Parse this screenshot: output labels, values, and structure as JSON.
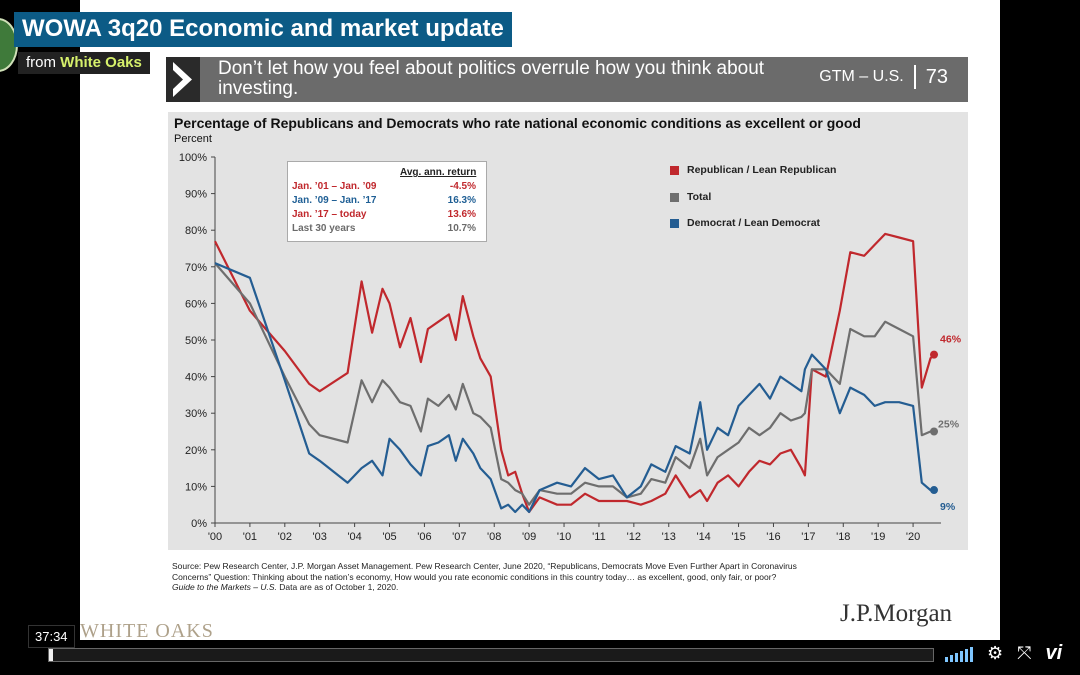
{
  "video": {
    "title": "WOWA 3q20 Economic and market update",
    "from_prefix": "from",
    "from_brand": "White Oaks",
    "timecode": "37:34",
    "progress_fraction": 0.004,
    "vimeo_label": "vi",
    "watermark": "WHITE OAKS"
  },
  "slide": {
    "banner_text": "Don’t let how you feel about politics overrule how you think about investing.",
    "banner_tag": "GTM – U.S.",
    "page_number": "73",
    "chart_title": "Percentage of Republicans and Democrats who rate national economic conditions as excellent or good",
    "y_unit": "Percent",
    "returns_table": {
      "header": "Avg. ann. return",
      "rows": [
        {
          "label": "Jan. ’01 – Jan. ’09",
          "value": "-4.5%",
          "color": "#c0282d"
        },
        {
          "label": "Jan. ’09 – Jan. ’17",
          "value": "16.3%",
          "color": "#1f5f95"
        },
        {
          "label": "Jan. ’17 – today",
          "value": "13.6%",
          "color": "#c0282d"
        },
        {
          "label": "Last 30 years",
          "value": "10.7%",
          "color": "#6b6b6b"
        }
      ]
    },
    "legend": [
      {
        "label": "Republican / Lean Republican",
        "color": "#c0282d"
      },
      {
        "label": "Total",
        "color": "#6e6e6e"
      },
      {
        "label": "Democrat / Lean Democrat",
        "color": "#245d92"
      }
    ],
    "source_text": "Source: Pew Research Center, J.P. Morgan Asset Management. Pew Research Center, June 2020, “Republicans, Democrats Move Even Further Apart in Coronavirus Concerns” Question: Thinking about the nation’s economy, How would you rate economic conditions in this country today… as excellent, good, only fair, or poor?",
    "guide_prefix": "Guide to the Markets – U.S.",
    "guide_suffix": " Data are as of October 1, 2020.",
    "brand": "J.P.Morgan"
  },
  "chart_data": {
    "type": "line",
    "title": "Percentage of Republicans and Democrats who rate national economic conditions as excellent or good",
    "ylabel": "Percent",
    "ylim": [
      0,
      100
    ],
    "yticks": [
      "0%",
      "10%",
      "20%",
      "30%",
      "40%",
      "50%",
      "60%",
      "70%",
      "80%",
      "90%",
      "100%"
    ],
    "xlim": [
      2000,
      2020.8
    ],
    "xticks": [
      "'00",
      "'01",
      "'02",
      "'03",
      "'04",
      "'05",
      "'06",
      "'07",
      "'08",
      "'09",
      "'10",
      "'11",
      "'12",
      "'13",
      "'14",
      "'15",
      "'16",
      "'17",
      "'18",
      "'19",
      "'20"
    ],
    "end_labels": [
      {
        "text": "46%",
        "series": "Republican / Lean Republican",
        "color": "#c0282d"
      },
      {
        "text": "25%",
        "series": "Total",
        "color": "#6e6e6e"
      },
      {
        "text": "9%",
        "series": "Democrat / Lean Democrat",
        "color": "#245d92"
      }
    ],
    "series": [
      {
        "name": "Republican / Lean Republican",
        "color": "#c0282d",
        "x": [
          2000,
          2001,
          2002,
          2002.7,
          2003,
          2003.8,
          2004.2,
          2004.5,
          2004.8,
          2005,
          2005.3,
          2005.6,
          2005.9,
          2006.1,
          2006.4,
          2006.7,
          2006.9,
          2007.1,
          2007.4,
          2007.6,
          2007.9,
          2008.2,
          2008.4,
          2008.6,
          2008.8,
          2009,
          2009.3,
          2009.8,
          2010.2,
          2010.6,
          2011,
          2011.4,
          2011.8,
          2012.2,
          2012.5,
          2012.9,
          2013.2,
          2013.6,
          2013.9,
          2014.1,
          2014.4,
          2014.7,
          2015,
          2015.3,
          2015.6,
          2015.9,
          2016.2,
          2016.5,
          2016.8,
          2016.9,
          2017.1,
          2017.5,
          2017.9,
          2018.2,
          2018.6,
          2018.9,
          2019.2,
          2019.6,
          2020.0,
          2020.25,
          2020.5,
          2020.6
        ],
        "values": [
          77,
          58,
          47,
          38,
          36,
          41,
          66,
          52,
          64,
          60,
          48,
          56,
          44,
          53,
          55,
          57,
          50,
          62,
          51,
          45,
          40,
          20,
          13,
          14,
          8,
          3,
          7,
          5,
          5,
          8,
          6,
          6,
          6,
          5,
          6,
          8,
          13,
          7,
          9,
          6,
          11,
          13,
          10,
          14,
          17,
          16,
          19,
          20,
          15,
          13,
          42,
          40,
          58,
          74,
          73,
          76,
          79,
          78,
          77,
          37,
          45,
          46
        ]
      },
      {
        "name": "Total",
        "color": "#6e6e6e",
        "x": [
          2000,
          2001,
          2002,
          2002.7,
          2003,
          2003.8,
          2004.2,
          2004.5,
          2004.8,
          2005,
          2005.3,
          2005.6,
          2005.9,
          2006.1,
          2006.4,
          2006.7,
          2006.9,
          2007.1,
          2007.4,
          2007.6,
          2007.9,
          2008.2,
          2008.4,
          2008.6,
          2008.8,
          2009,
          2009.3,
          2009.8,
          2010.2,
          2010.6,
          2011,
          2011.4,
          2011.8,
          2012.2,
          2012.5,
          2012.9,
          2013.2,
          2013.6,
          2013.9,
          2014.1,
          2014.4,
          2014.7,
          2015,
          2015.3,
          2015.6,
          2015.9,
          2016.2,
          2016.5,
          2016.8,
          2016.9,
          2017.1,
          2017.5,
          2017.9,
          2018.2,
          2018.6,
          2018.9,
          2019.2,
          2019.6,
          2020.0,
          2020.25,
          2020.5,
          2020.6
        ],
        "values": [
          71,
          60,
          40,
          27,
          24,
          22,
          39,
          33,
          39,
          37,
          33,
          32,
          25,
          34,
          32,
          35,
          31,
          38,
          30,
          29,
          26,
          12,
          11,
          9,
          8,
          5,
          9,
          8,
          8,
          11,
          10,
          10,
          7,
          8,
          12,
          11,
          18,
          15,
          23,
          13,
          18,
          20,
          22,
          26,
          24,
          26,
          30,
          28,
          29,
          30,
          42,
          42,
          38,
          53,
          51,
          51,
          55,
          53,
          51,
          24,
          25,
          25
        ]
      },
      {
        "name": "Democrat / Lean Democrat",
        "color": "#245d92",
        "x": [
          2000,
          2001,
          2002,
          2002.7,
          2003,
          2003.8,
          2004.2,
          2004.5,
          2004.8,
          2005,
          2005.3,
          2005.6,
          2005.9,
          2006.1,
          2006.4,
          2006.7,
          2006.9,
          2007.1,
          2007.4,
          2007.6,
          2007.9,
          2008.2,
          2008.4,
          2008.6,
          2008.8,
          2009,
          2009.3,
          2009.8,
          2010.2,
          2010.6,
          2011,
          2011.4,
          2011.8,
          2012.2,
          2012.5,
          2012.9,
          2013.2,
          2013.6,
          2013.9,
          2014.1,
          2014.4,
          2014.7,
          2015,
          2015.3,
          2015.6,
          2015.9,
          2016.2,
          2016.5,
          2016.8,
          2016.9,
          2017.1,
          2017.5,
          2017.9,
          2018.2,
          2018.6,
          2018.9,
          2019.2,
          2019.6,
          2020.0,
          2020.25,
          2020.5,
          2020.6
        ],
        "values": [
          71,
          67,
          39,
          19,
          17,
          11,
          15,
          17,
          13,
          23,
          20,
          16,
          13,
          21,
          22,
          24,
          17,
          23,
          19,
          15,
          12,
          4,
          5,
          3,
          5,
          3,
          9,
          11,
          10,
          15,
          12,
          13,
          7,
          10,
          16,
          14,
          21,
          19,
          33,
          20,
          26,
          24,
          32,
          35,
          38,
          34,
          40,
          38,
          36,
          42,
          46,
          42,
          30,
          37,
          35,
          32,
          33,
          33,
          32,
          11,
          9,
          9
        ]
      }
    ]
  }
}
